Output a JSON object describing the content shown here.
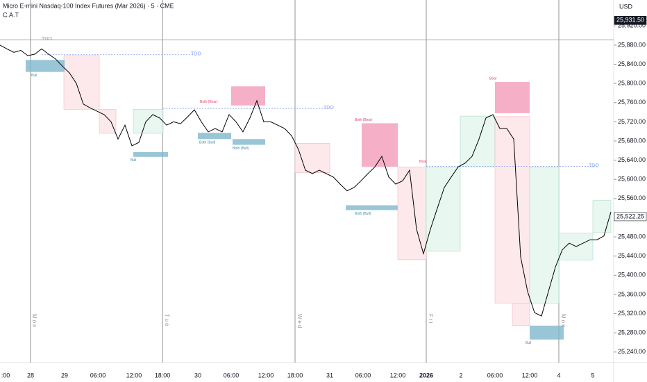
{
  "chart_data": {
    "type": "line",
    "title": "Micro E-mini Nasdaq-100 Index Futures (Mar 2026) · 5 · CME",
    "subtitle": "C.A.T",
    "currency": "USD",
    "color": "#000000",
    "values": [
      25880,
      25872,
      25865,
      25869,
      25858,
      25861,
      25872,
      25861,
      25851,
      25836,
      25822,
      25800,
      25757,
      25749,
      25742,
      25735,
      25720,
      25684,
      25713,
      25670,
      25677,
      25720,
      25735,
      25728,
      25713,
      25720,
      25716,
      25730,
      25745,
      25720,
      25699,
      25706,
      25699,
      25735,
      25720,
      25699,
      25728,
      25764,
      25720,
      25720,
      25713,
      25706,
      25691,
      25662,
      25619,
      25612,
      25619,
      25612,
      25605,
      25590,
      25576,
      25583,
      25597,
      25612,
      25626,
      25648,
      25605,
      25590,
      25597,
      25619,
      25496,
      25445,
      25496,
      25540,
      25583,
      25605,
      25626,
      25634,
      25648,
      25684,
      25728,
      25735,
      25706,
      25706,
      25684,
      25438,
      25366,
      25322,
      25315,
      25366,
      25417,
      25453,
      25467,
      25460,
      25467,
      25474,
      25474,
      25482,
      25532
    ],
    "ylim": [
      25218,
      25974
    ],
    "yticks": [
      {
        "value": 25240,
        "label": "25,240.00"
      },
      {
        "value": 25280,
        "label": "25,280.00"
      },
      {
        "value": 25320,
        "label": "25,320.00"
      },
      {
        "value": 25360,
        "label": "25,360.00"
      },
      {
        "value": 25400,
        "label": "25,400.00"
      },
      {
        "value": 25440,
        "label": "25,440.00"
      },
      {
        "value": 25480,
        "label": "25,480.00"
      },
      {
        "value": 25560,
        "label": "25,560.00"
      },
      {
        "value": 25600,
        "label": "25,600.00"
      },
      {
        "value": 25640,
        "label": "25,640.00"
      },
      {
        "value": 25680,
        "label": "25,680.00"
      },
      {
        "value": 25720,
        "label": "25,720.00"
      },
      {
        "value": 25760,
        "label": "25,760.00"
      },
      {
        "value": 25800,
        "label": "25,800.00"
      },
      {
        "value": 25840,
        "label": "25,840.00"
      },
      {
        "value": 25880,
        "label": "25,880.00"
      },
      {
        "value": 25920,
        "label": "25,920.00"
      }
    ],
    "price_labels": [
      {
        "value": 25931.5,
        "label": "25,931.50",
        "style": "dark"
      },
      {
        "value": 25522.25,
        "label": "25,522.25",
        "style": "light"
      }
    ],
    "x_labels": [
      ":00",
      "28",
      "29",
      "06:00",
      "12:00",
      "18:00",
      "30",
      "06:00",
      "12:00",
      "18:00",
      "31",
      "06:00",
      "12:00",
      "2026",
      "2",
      "06:00",
      "12:00",
      "4",
      "5"
    ],
    "day_labels": [
      "Mon",
      "Tue",
      "Wed",
      "Fri",
      "Mon"
    ],
    "zones": [
      {
        "high": 25858,
        "low": 25746,
        "color": "#fde3e6"
      },
      {
        "high": 25746,
        "low": 25696,
        "color": "#fde3e6"
      },
      {
        "high": 25746,
        "low": 25696,
        "color": "#e3f5ee"
      },
      {
        "high": 25849,
        "low": 25824,
        "color": "#7fb8cc"
      },
      {
        "high": 25657,
        "low": 25647,
        "color": "#7fb8cc"
      },
      {
        "high": 25794,
        "low": 25754,
        "color": "#f29bb8"
      },
      {
        "high": 25697,
        "low": 25684,
        "color": "#7fb8cc"
      },
      {
        "high": 25684,
        "low": 25672,
        "color": "#7fb8cc"
      },
      {
        "high": 25675,
        "low": 25614,
        "color": "#fde3e6"
      },
      {
        "high": 25717,
        "low": 25626,
        "color": "#f29bb8"
      },
      {
        "high": 25546,
        "low": 25536,
        "color": "#7fb8cc"
      },
      {
        "high": 25626,
        "low": 25433,
        "color": "#fde3e6"
      },
      {
        "high": 25626,
        "low": 25450,
        "color": "#e3f5ee"
      },
      {
        "high": 25732,
        "low": 25626,
        "color": "#e3f5ee"
      },
      {
        "high": 25803,
        "low": 25738,
        "color": "#f29bb8"
      },
      {
        "high": 25731,
        "low": 25342,
        "color": "#fde3e6"
      },
      {
        "high": 25342,
        "low": 25295,
        "color": "#fde3e6"
      },
      {
        "high": 25626,
        "low": 25342,
        "color": "#e3f5ee"
      },
      {
        "high": 25295,
        "low": 25266,
        "color": "#7fb8cc"
      },
      {
        "high": 25488,
        "low": 25432,
        "color": "#e3f5ee"
      },
      {
        "high": 25556,
        "low": 25489,
        "color": "#e3f5ee"
      }
    ],
    "levels": [
      {
        "value": 25891,
        "label": "TDO",
        "color": "#999999"
      },
      {
        "value": 25860,
        "label": "TDO",
        "color": "#7f9cf0"
      },
      {
        "value": 25748,
        "label": "TDO",
        "color": "#7f9cf0"
      },
      {
        "value": 25627,
        "label": "TDO",
        "color": "#7f9cf0"
      }
    ],
    "box_labels": [
      {
        "value": 25824,
        "label": "Bull"
      },
      {
        "value": 25647,
        "label": "Bull"
      },
      {
        "value": 25754,
        "label": "Both (Bear)"
      },
      {
        "value": 25684,
        "label": "Both (Bull)"
      },
      {
        "value": 25672,
        "label": "Both (Bull)"
      },
      {
        "value": 25717,
        "label": "Both (Bear)"
      },
      {
        "value": 25536,
        "label": "Both (Bull)"
      },
      {
        "value": 25630,
        "label": "Bear"
      },
      {
        "value": 25803,
        "label": "Bear"
      },
      {
        "value": 25266,
        "label": "Bull"
      }
    ]
  }
}
